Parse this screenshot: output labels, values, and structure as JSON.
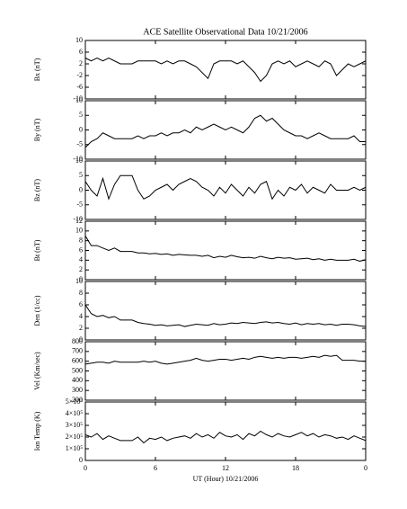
{
  "chart_data": {
    "type": "line",
    "title": "ACE Satellite Observational Data   10/21/2006",
    "xlabel": "UT (Hour)   10/21/2006",
    "xlim": [
      0,
      24
    ],
    "xticks": [
      0,
      6,
      12,
      18,
      {
        "value": 24,
        "label": "0"
      }
    ],
    "color": "#000000",
    "x": [
      0,
      0.5,
      1,
      1.5,
      2,
      2.5,
      3,
      3.5,
      4,
      4.5,
      5,
      5.5,
      6,
      6.5,
      7,
      7.5,
      8,
      8.5,
      9,
      9.5,
      10,
      10.5,
      11,
      11.5,
      12,
      12.5,
      13,
      13.5,
      14,
      14.5,
      15,
      15.5,
      16,
      16.5,
      17,
      17.5,
      18,
      18.5,
      19,
      19.5,
      20,
      20.5,
      21,
      21.5,
      22,
      22.5,
      23,
      23.5,
      24
    ],
    "panels": [
      {
        "ylabel": "Bx (nT)",
        "ylim": [
          -10,
          10
        ],
        "yticks": [
          -10,
          -6,
          -2,
          2,
          6,
          10
        ],
        "values": [
          4,
          3,
          4,
          3,
          4,
          3,
          2,
          2,
          2,
          3,
          3,
          3,
          3,
          2,
          3,
          2,
          3,
          3,
          2,
          1,
          -1,
          -3,
          2,
          3,
          3,
          3,
          2,
          3,
          1,
          -1,
          -4,
          -2,
          2,
          3,
          2,
          3,
          1,
          2,
          3,
          2,
          1,
          3,
          2,
          -2,
          0,
          2,
          1,
          2,
          3
        ]
      },
      {
        "ylabel": "By (nT)",
        "ylim": [
          -10,
          10
        ],
        "yticks": [
          -10,
          -5,
          0,
          5,
          10
        ],
        "values": [
          -6,
          -4,
          -3,
          -1,
          -2,
          -3,
          -3,
          -3,
          -3,
          -2,
          -3,
          -2,
          -2,
          -1,
          -2,
          -1,
          -1,
          0,
          -1,
          1,
          0,
          1,
          2,
          1,
          0,
          1,
          0,
          -1,
          1,
          4,
          5,
          3,
          4,
          2,
          0,
          -1,
          -2,
          -2,
          -3,
          -2,
          -1,
          -2,
          -3,
          -3,
          -3,
          -3,
          -2,
          -4,
          -4
        ]
      },
      {
        "ylabel": "Bz (nT)",
        "ylim": [
          -10,
          10
        ],
        "yticks": [
          -10,
          -5,
          0,
          5,
          10
        ],
        "values": [
          3,
          0,
          -2,
          4,
          -3,
          2,
          5,
          5,
          5,
          0,
          -3,
          -2,
          0,
          1,
          2,
          0,
          2,
          3,
          4,
          3,
          1,
          0,
          -2,
          1,
          -1,
          2,
          0,
          -2,
          1,
          -1,
          2,
          3,
          -3,
          0,
          -2,
          1,
          0,
          2,
          -1,
          1,
          0,
          -1,
          2,
          0,
          0,
          0,
          1,
          0,
          1
        ]
      },
      {
        "ylabel": "Bt (nT)",
        "ylim": [
          0,
          12
        ],
        "yticks": [
          0,
          2,
          4,
          6,
          8,
          10,
          12
        ],
        "values": [
          9,
          7,
          7,
          6.5,
          6,
          6.5,
          5.8,
          5.8,
          5.8,
          5.5,
          5.5,
          5.3,
          5.4,
          5.2,
          5.3,
          5,
          5.2,
          5.1,
          5,
          5,
          4.8,
          5,
          4.5,
          4.8,
          4.6,
          5,
          4.7,
          4.5,
          4.6,
          4.4,
          4.8,
          4.5,
          4.3,
          4.6,
          4.4,
          4.5,
          4.2,
          4.3,
          4.4,
          4.1,
          4.3,
          4,
          4.2,
          4,
          4,
          4,
          4.2,
          3.8,
          4.1
        ]
      },
      {
        "ylabel": "Den (1/cc)",
        "ylim": [
          0,
          10
        ],
        "yticks": [
          0,
          2,
          4,
          6,
          8,
          10
        ],
        "values": [
          6,
          4.5,
          4,
          4.2,
          3.8,
          4,
          3.4,
          3.4,
          3.4,
          3,
          2.8,
          2.7,
          2.5,
          2.6,
          2.4,
          2.5,
          2.6,
          2.3,
          2.5,
          2.7,
          2.6,
          2.5,
          2.8,
          2.6,
          2.7,
          2.9,
          2.8,
          3,
          2.9,
          2.8,
          3,
          3.1,
          2.9,
          3,
          2.8,
          2.7,
          2.9,
          2.6,
          2.8,
          2.7,
          2.8,
          2.6,
          2.7,
          2.5,
          2.7,
          2.7,
          2.6,
          2.4,
          2.3
        ]
      },
      {
        "ylabel": "Vel (Km/sec)",
        "ylim": [
          200,
          800
        ],
        "yticks": [
          200,
          300,
          400,
          500,
          600,
          700,
          800
        ],
        "values": [
          570,
          580,
          590,
          590,
          580,
          600,
          590,
          590,
          590,
          590,
          600,
          590,
          600,
          580,
          570,
          580,
          590,
          600,
          610,
          630,
          610,
          600,
          610,
          620,
          620,
          610,
          620,
          630,
          620,
          640,
          650,
          640,
          630,
          640,
          630,
          640,
          640,
          630,
          640,
          650,
          640,
          660,
          650,
          660,
          610,
          610,
          610,
          600,
          600
        ]
      },
      {
        "ylabel": "Ion Temp (K)",
        "ylim": [
          0,
          500000
        ],
        "yticks": [
          0,
          {
            "value": 100000,
            "label": "1×10⁵"
          },
          {
            "value": 200000,
            "label": "2×10⁵"
          },
          {
            "value": 300000,
            "label": "3×10⁵"
          },
          {
            "value": 400000,
            "label": "4×10⁵"
          },
          {
            "value": 500000,
            "label": "5×10⁵"
          }
        ],
        "values": [
          220000,
          200000,
          230000,
          180000,
          210000,
          190000,
          170000,
          170000,
          170000,
          200000,
          150000,
          190000,
          180000,
          200000,
          170000,
          190000,
          200000,
          210000,
          190000,
          230000,
          200000,
          220000,
          190000,
          240000,
          210000,
          200000,
          220000,
          180000,
          230000,
          210000,
          250000,
          220000,
          200000,
          230000,
          210000,
          200000,
          220000,
          240000,
          210000,
          230000,
          200000,
          220000,
          210000,
          190000,
          200000,
          180000,
          210000,
          190000,
          170000
        ]
      }
    ]
  }
}
